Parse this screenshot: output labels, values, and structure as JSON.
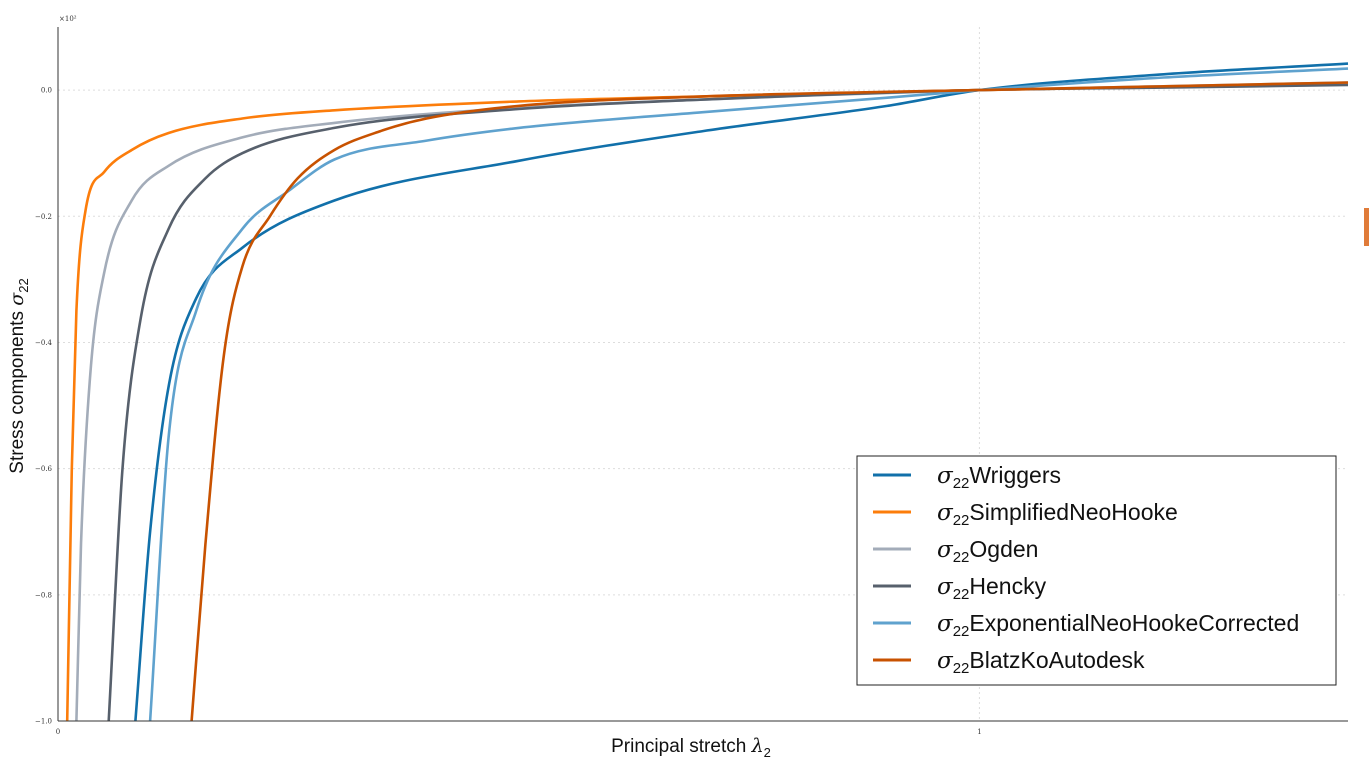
{
  "chart_data": {
    "type": "line",
    "title": "",
    "xlabel_text": "Principal stretch ",
    "xlabel_symbol": "λ",
    "xlabel_sub": "2",
    "ylabel_text": "Stress components ",
    "ylabel_symbol": "σ",
    "ylabel_sub": "22",
    "y_scale_note": "×10²",
    "xlim": [
      0,
      1.4
    ],
    "ylim": [
      -1.0,
      0.1
    ],
    "x_ticks": [
      0,
      1
    ],
    "x_tick_labels": [
      "0",
      "1"
    ],
    "y_ticks": [
      0.0,
      -0.2,
      -0.4,
      -0.6,
      -0.8,
      -1.0
    ],
    "y_tick_labels": [
      "0.0",
      "−0.2",
      "−0.4",
      "−0.6",
      "−0.8",
      "−1.0"
    ],
    "grid": true,
    "legend_position": "lower-right",
    "series": [
      {
        "name": "Wriggers",
        "color": "#1170aa",
        "x": [
          0.084,
          0.1,
          0.12,
          0.15,
          0.2,
          0.3,
          0.5,
          0.7,
          0.9,
          1.0,
          1.2,
          1.4
        ],
        "y": [
          -1.0,
          -0.7,
          -0.47,
          -0.33,
          -0.25,
          -0.175,
          -0.112,
          -0.065,
          -0.025,
          0.0,
          0.025,
          0.042
        ]
      },
      {
        "name": "SimplifiedNeoHooke",
        "color": "#fc7d0b",
        "x": [
          0.01,
          0.015,
          0.02,
          0.03,
          0.05,
          0.08,
          0.12,
          0.2,
          0.3,
          0.5,
          0.7,
          1.0,
          1.2,
          1.4
        ],
        "y": [
          -1.0,
          -0.6,
          -0.35,
          -0.19,
          -0.13,
          -0.095,
          -0.068,
          -0.045,
          -0.032,
          -0.018,
          -0.01,
          0.0,
          0.005,
          0.01
        ]
      },
      {
        "name": "Ogden",
        "color": "#a3acb9",
        "x": [
          0.02,
          0.025,
          0.035,
          0.05,
          0.08,
          0.12,
          0.2,
          0.3,
          0.5,
          0.7,
          1.0,
          1.2,
          1.4
        ],
        "y": [
          -1.0,
          -0.72,
          -0.45,
          -0.29,
          -0.175,
          -0.12,
          -0.075,
          -0.052,
          -0.028,
          -0.015,
          0.0,
          0.006,
          0.012
        ]
      },
      {
        "name": "Hencky",
        "color": "#57606c",
        "x": [
          0.055,
          0.07,
          0.09,
          0.12,
          0.16,
          0.2,
          0.3,
          0.5,
          0.7,
          1.0,
          1.2,
          1.4
        ],
        "y": [
          -1.0,
          -0.6,
          -0.36,
          -0.22,
          -0.14,
          -0.1,
          -0.06,
          -0.03,
          -0.015,
          0.0,
          0.004,
          0.008
        ]
      },
      {
        "name": "ExponentialNeoHookeCorrected",
        "color": "#5fa2ce",
        "x": [
          0.1,
          0.12,
          0.15,
          0.2,
          0.25,
          0.3,
          0.4,
          0.5,
          0.7,
          0.9,
          1.0,
          1.2,
          1.4
        ],
        "y": [
          -1.0,
          -0.55,
          -0.35,
          -0.22,
          -0.16,
          -0.11,
          -0.08,
          -0.06,
          -0.035,
          -0.012,
          0.0,
          0.02,
          0.034
        ]
      },
      {
        "name": "BlatzKoAutodesk",
        "color": "#c85200",
        "x": [
          0.145,
          0.16,
          0.18,
          0.2,
          0.23,
          0.26,
          0.3,
          0.35,
          0.4,
          0.5,
          0.7,
          1.0,
          1.2,
          1.4
        ],
        "y": [
          -1.0,
          -0.72,
          -0.42,
          -0.28,
          -0.2,
          -0.14,
          -0.095,
          -0.065,
          -0.045,
          -0.025,
          -0.01,
          0.0,
          0.006,
          0.012
        ]
      }
    ]
  }
}
